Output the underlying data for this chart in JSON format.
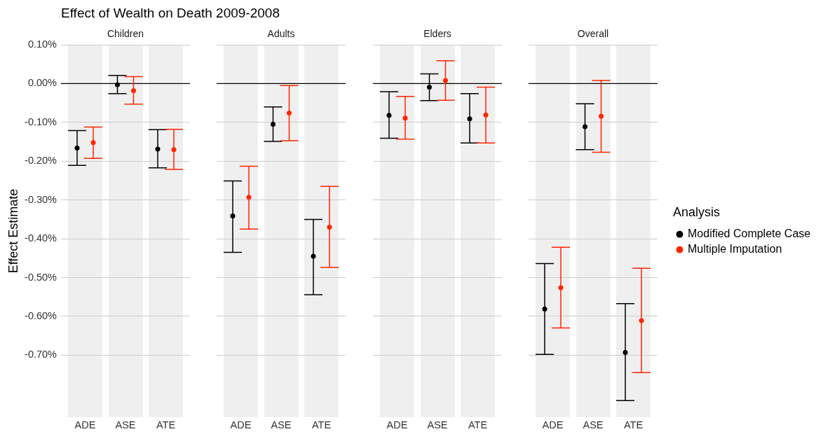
{
  "chart_data": [
    {
      "type": "scatter",
      "title": "Effect of Wealth on Death 2009-2008",
      "subtitle": "Children",
      "ylabel": "Effect Estimate",
      "categories": [
        null,
        "ADE",
        null,
        null,
        null,
        null,
        "ASE",
        null,
        null,
        null,
        null,
        "ATE",
        null
      ],
      "series": [
        {
          "color": "#000000",
          "values": [
            -0.166,
            null,
            null,
            null,
            null,
            -0.003,
            null,
            null,
            null,
            null,
            -0.169,
            null,
            null
          ],
          "errors": [
            [
              -0.211,
              -0.121
            ],
            null,
            null,
            null,
            null,
            [
              -0.026,
              0.021
            ],
            null,
            null,
            null,
            null,
            [
              -0.217,
              -0.119
            ],
            null,
            null
          ]
        },
        {
          "color": "#ff2600",
          "values": [
            null,
            null,
            -0.152,
            null,
            null,
            null,
            null,
            -0.018,
            null,
            null,
            null,
            null,
            -0.17
          ],
          "errors": [
            null,
            null,
            [
              -0.193,
              -0.112
            ],
            null,
            null,
            null,
            null,
            [
              -0.053,
              0.018
            ],
            null,
            null,
            null,
            null,
            [
              -0.221,
              -0.118
            ]
          ]
        }
      ],
      "ylim": [
        -0.86,
        0.1
      ],
      "yticks": [
        {
          "value": 0.1,
          "label": "0.10%"
        },
        {
          "value": 0,
          "label": "0.00%"
        },
        {
          "value": -0.1,
          "label": "-0.10%"
        },
        {
          "value": -0.2,
          "label": "-0.20%"
        },
        {
          "value": -0.3,
          "label": "-0.30%"
        },
        {
          "value": -0.4,
          "label": "-0.40%"
        },
        {
          "value": -0.5,
          "label": "-0.50%"
        },
        {
          "value": -0.6,
          "label": "-0.60%"
        },
        {
          "value": -0.7,
          "label": "-0.70%"
        }
      ],
      "ref_lines": [
        {
          "axis": "y",
          "value": 0,
          "color": "#000000"
        }
      ],
      "grid": true,
      "marker": "circle"
    },
    {
      "type": "scatter",
      "subtitle": "Adults",
      "categories": [
        null,
        "ADE",
        null,
        null,
        null,
        null,
        "ASE",
        null,
        null,
        null,
        null,
        "ATE",
        null
      ],
      "series": [
        {
          "color": "#000000",
          "values": [
            -0.341,
            null,
            null,
            null,
            null,
            -0.105,
            null,
            null,
            null,
            null,
            -0.445,
            null,
            null
          ],
          "errors": [
            [
              -0.435,
              -0.251
            ],
            null,
            null,
            null,
            null,
            [
              -0.149,
              -0.06
            ],
            null,
            null,
            null,
            null,
            [
              -0.544,
              -0.35
            ],
            null,
            null
          ]
        },
        {
          "color": "#ff2600",
          "values": [
            null,
            null,
            -0.293,
            null,
            null,
            null,
            null,
            -0.076,
            null,
            null,
            null,
            null,
            -0.37
          ],
          "errors": [
            null,
            null,
            [
              -0.375,
              -0.213
            ],
            null,
            null,
            null,
            null,
            [
              -0.147,
              -0.005
            ],
            null,
            null,
            null,
            null,
            [
              -0.474,
              -0.265
            ]
          ]
        }
      ],
      "ylim": [
        -0.86,
        0.1
      ],
      "yticks": [
        0.1,
        0,
        -0.1,
        -0.2,
        -0.3,
        -0.4,
        -0.5,
        -0.6,
        -0.7
      ],
      "ref_lines": [
        {
          "axis": "y",
          "value": 0,
          "color": "#000000"
        }
      ],
      "grid": true,
      "marker": "circle",
      "tick_labels": "x"
    },
    {
      "type": "scatter",
      "subtitle": "Elders",
      "categories": [
        null,
        "ADE",
        null,
        null,
        null,
        null,
        "ASE",
        null,
        null,
        null,
        null,
        "ATE",
        null
      ],
      "series": [
        {
          "color": "#000000",
          "values": [
            -0.082,
            null,
            null,
            null,
            null,
            -0.009,
            null,
            null,
            null,
            null,
            -0.091,
            null,
            null
          ],
          "errors": [
            [
              -0.141,
              -0.021
            ],
            null,
            null,
            null,
            null,
            [
              -0.044,
              0.025
            ],
            null,
            null,
            null,
            null,
            [
              -0.153,
              -0.026
            ],
            null,
            null
          ]
        },
        {
          "color": "#ff2600",
          "values": [
            null,
            null,
            -0.089,
            null,
            null,
            null,
            null,
            0.008,
            null,
            null,
            null,
            null,
            -0.081
          ],
          "errors": [
            null,
            null,
            [
              -0.143,
              -0.033
            ],
            null,
            null,
            null,
            null,
            [
              -0.043,
              0.059
            ],
            null,
            null,
            null,
            null,
            [
              -0.153,
              -0.009
            ]
          ]
        }
      ],
      "ylim": [
        -0.86,
        0.1
      ],
      "yticks": [
        0.1,
        0,
        -0.1,
        -0.2,
        -0.3,
        -0.4,
        -0.5,
        -0.6,
        -0.7
      ],
      "ref_lines": [
        {
          "axis": "y",
          "value": 0,
          "color": "#000000"
        }
      ],
      "grid": true,
      "marker": "circle",
      "tick_labels": "x"
    },
    {
      "type": "scatter",
      "subtitle": "Overall",
      "categories": [
        null,
        "ADE",
        null,
        null,
        null,
        null,
        "ASE",
        null,
        null,
        null,
        null,
        "ATE",
        null
      ],
      "series": [
        {
          "name": "Modified Complete Case",
          "color": "#000000",
          "values": [
            -0.581,
            null,
            null,
            null,
            null,
            -0.111,
            null,
            null,
            null,
            null,
            -0.693,
            null,
            null
          ],
          "errors": [
            [
              -0.698,
              -0.464
            ],
            null,
            null,
            null,
            null,
            [
              -0.17,
              -0.052
            ],
            null,
            null,
            null,
            null,
            [
              -0.817,
              -0.567
            ],
            null,
            null
          ]
        },
        {
          "name": "Multiple Imputation",
          "color": "#ff2600",
          "values": [
            null,
            null,
            -0.526,
            null,
            null,
            null,
            null,
            -0.084,
            null,
            null,
            null,
            null,
            -0.611
          ],
          "errors": [
            null,
            null,
            [
              -0.63,
              -0.422
            ],
            null,
            null,
            null,
            null,
            [
              -0.177,
              0.008
            ],
            null,
            null,
            null,
            null,
            [
              -0.745,
              -0.476
            ]
          ]
        }
      ],
      "ylim": [
        -0.86,
        0.1
      ],
      "yticks": [
        0.1,
        0,
        -0.1,
        -0.2,
        -0.3,
        -0.4,
        -0.5,
        -0.6,
        -0.7
      ],
      "ref_lines": [
        {
          "axis": "y",
          "value": 0,
          "color": "#000000"
        }
      ],
      "grid": true,
      "marker": "circle",
      "tick_labels": "x",
      "legend": "right",
      "legend_title": "Analysis"
    }
  ]
}
